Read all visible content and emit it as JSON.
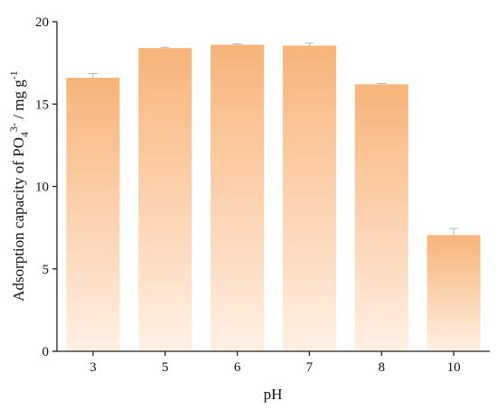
{
  "chart_data": {
    "type": "bar",
    "title": "",
    "xlabel": "pH",
    "ylabel_parts": {
      "prefix": "Adsorption capacity of PO",
      "sub": "4",
      "sup": "3-",
      "middle": " / mg g",
      "sup2": "-1"
    },
    "categories": [
      "3",
      "5",
      "6",
      "7",
      "8",
      "10"
    ],
    "values": [
      16.6,
      18.4,
      18.6,
      18.55,
      16.2,
      7.05
    ],
    "errors": [
      0.25,
      0.05,
      0.05,
      0.15,
      0.05,
      0.4
    ],
    "ylim": [
      0,
      20
    ],
    "yticks": [
      "0",
      "5",
      "10",
      "15",
      "20"
    ],
    "grid": false,
    "bar_gradient": {
      "top": "#f8b47a",
      "bottom": "#fff0e4"
    }
  }
}
